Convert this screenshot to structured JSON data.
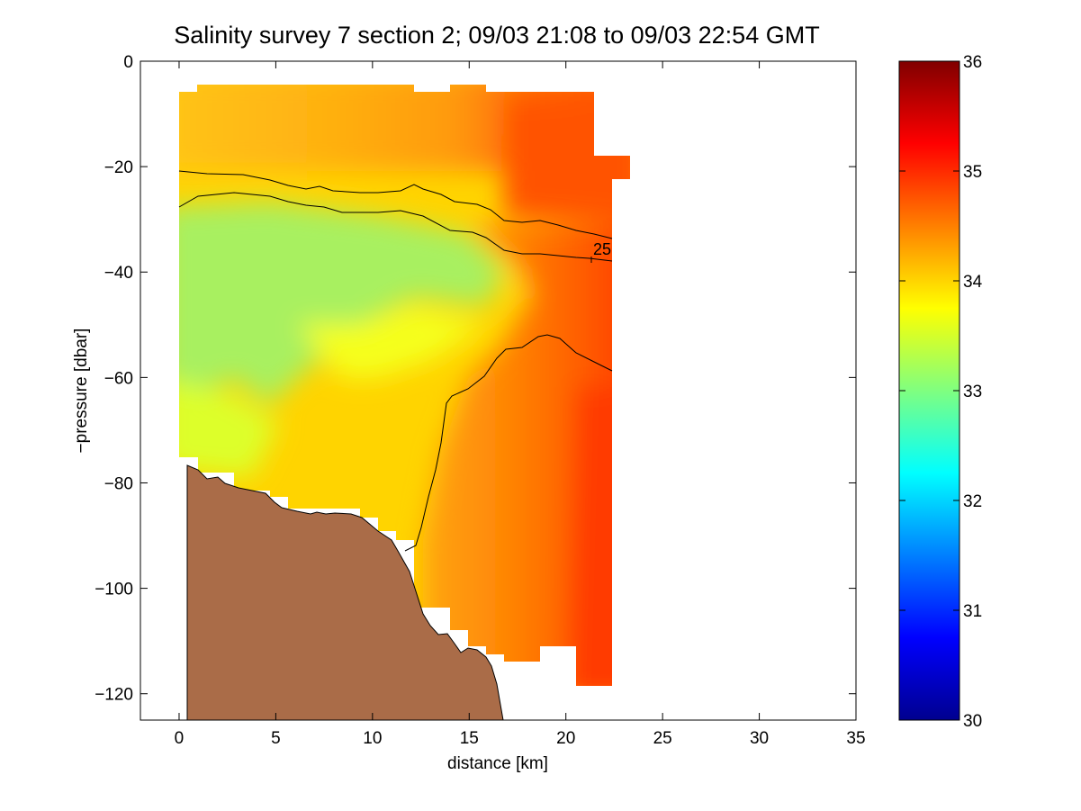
{
  "chart_data": {
    "type": "heatmap",
    "title": "Salinity survey 7 section 2; 09/03 21:08 to 09/03 22:54 GMT",
    "xlabel": "distance [km]",
    "ylabel": "−pressure [dbar]",
    "xlim": [
      -2,
      35
    ],
    "ylim": [
      -125,
      0
    ],
    "xticks": [
      0,
      5,
      10,
      15,
      20,
      25,
      30,
      35
    ],
    "xtick_labels": [
      "0",
      "5",
      "10",
      "15",
      "20",
      "25",
      "30",
      "35"
    ],
    "yticks": [
      0,
      -20,
      -40,
      -60,
      -80,
      -100,
      -120
    ],
    "ytick_labels": [
      "0",
      "−20",
      "−40",
      "−60",
      "−80",
      "−100",
      "−120"
    ],
    "colorbar": {
      "range": [
        30,
        36
      ],
      "ticks": [
        30,
        31,
        32,
        33,
        34,
        35,
        36
      ],
      "tick_labels": [
        "30",
        "31",
        "32",
        "33",
        "34",
        "35",
        "36"
      ],
      "colormap": "jet"
    },
    "contour_labels": [
      {
        "text": "25",
        "x": 21.3,
        "y": -36.5
      }
    ],
    "zones": [
      {
        "name": "surface",
        "x": [
          0,
          22.5
        ],
        "y": [
          -22,
          -5
        ],
        "salinity_from": 34.15,
        "salinity_to": 35.1
      },
      {
        "name": "core",
        "x": [
          0,
          12
        ],
        "y": [
          -60,
          -28
        ],
        "salinity": 33.3
      },
      {
        "name": "mid",
        "x": [
          0,
          14
        ],
        "y": [
          -85,
          -45
        ],
        "salinity": 33.9
      },
      {
        "name": "eastern",
        "x": [
          15,
          22.5
        ],
        "y": [
          -118,
          -25
        ],
        "salinity_from": 34.5,
        "salinity_to": 35.15
      }
    ],
    "bathymetry_color": "#AA6C48"
  }
}
